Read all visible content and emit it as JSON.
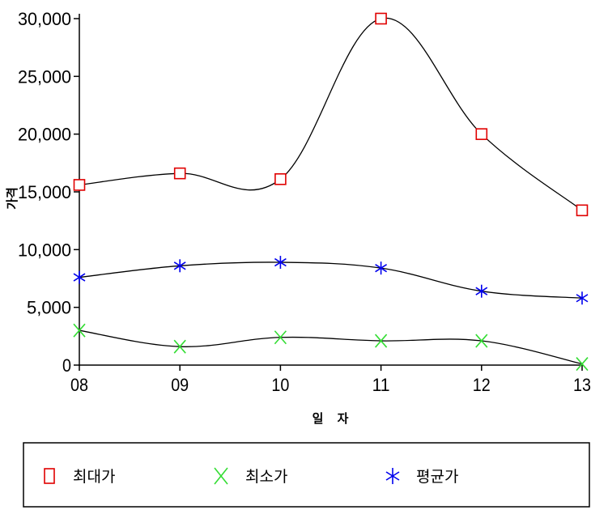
{
  "chart_data": {
    "type": "line",
    "title": "",
    "xlabel": "일 자",
    "ylabel": "가격",
    "categories": [
      "08",
      "09",
      "10",
      "11",
      "12",
      "13"
    ],
    "ylim": [
      0,
      30000
    ],
    "yticks": [
      0,
      5000,
      10000,
      15000,
      20000,
      25000,
      30000
    ],
    "ytick_labels": [
      "0",
      "5,000",
      "10,000",
      "15,000",
      "20,000",
      "25,000",
      "30,000"
    ],
    "grid": false,
    "legend_position": "bottom",
    "series": [
      {
        "name": "최대가",
        "marker": "square",
        "color": "#e00000",
        "values": [
          15600,
          16600,
          16100,
          30000,
          20000,
          13400
        ]
      },
      {
        "name": "최소가",
        "marker": "x",
        "color": "#33dd33",
        "values": [
          3000,
          1600,
          2400,
          2100,
          2100,
          100
        ]
      },
      {
        "name": "평균가",
        "marker": "asterisk",
        "color": "#0000ee",
        "values": [
          7600,
          8600,
          8900,
          8400,
          6400,
          5800
        ]
      }
    ]
  }
}
